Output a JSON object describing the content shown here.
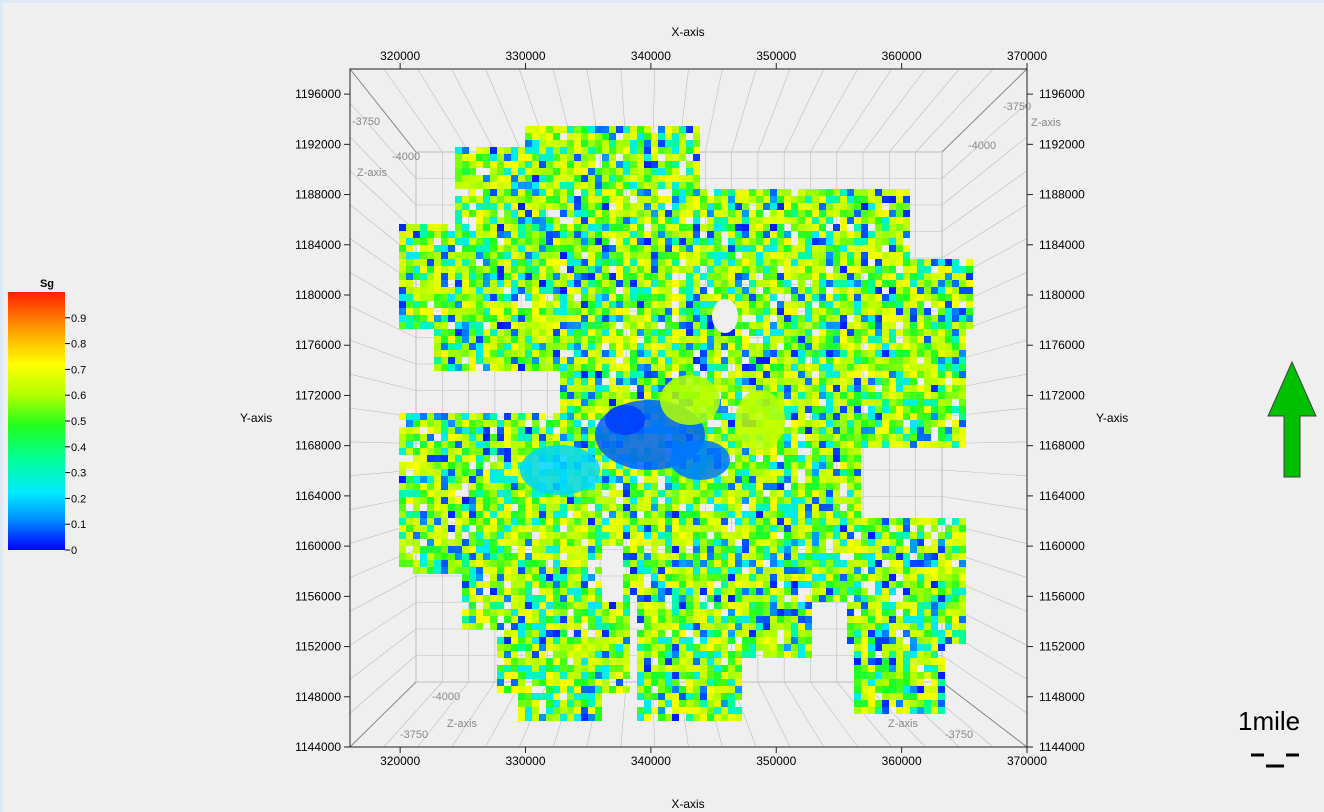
{
  "chart_data": {
    "type": "heatmap",
    "property": "Sg",
    "axes": {
      "x": {
        "label": "X-axis",
        "range": [
          316000,
          370000
        ],
        "ticks": [
          320000,
          330000,
          340000,
          350000,
          360000,
          370000
        ]
      },
      "y": {
        "label": "Y-axis",
        "range": [
          1144000,
          1198000
        ],
        "ticks": [
          1144000,
          1148000,
          1152000,
          1156000,
          1160000,
          1164000,
          1168000,
          1172000,
          1176000,
          1180000,
          1184000,
          1188000,
          1192000,
          1196000
        ]
      },
      "z": {
        "label": "Z-axis",
        "ticks": [
          -3750,
          -4000
        ]
      }
    },
    "colorbar": {
      "title": "Sg",
      "range": [
        0,
        1
      ],
      "ticks": [
        0,
        0.1,
        0.2,
        0.3,
        0.4,
        0.5,
        0.6,
        0.7,
        0.8,
        0.9
      ],
      "tick_labels": [
        "0",
        "0.1",
        "0.2",
        "0.3",
        "0.4",
        "0.5",
        "0.6",
        "0.7",
        "0.8",
        "0.9"
      ],
      "colors": [
        "#0000ff",
        "#00b4ff",
        "#00ffff",
        "#00ff80",
        "#40ff00",
        "#c0ff00",
        "#ffff00",
        "#ffc000",
        "#ff8000",
        "#ff3000"
      ]
    },
    "grid": true
  },
  "north_arrow": {
    "color": "#00c000",
    "icon": "arrow-up-icon"
  },
  "scale_bar": {
    "label": "1mile"
  }
}
